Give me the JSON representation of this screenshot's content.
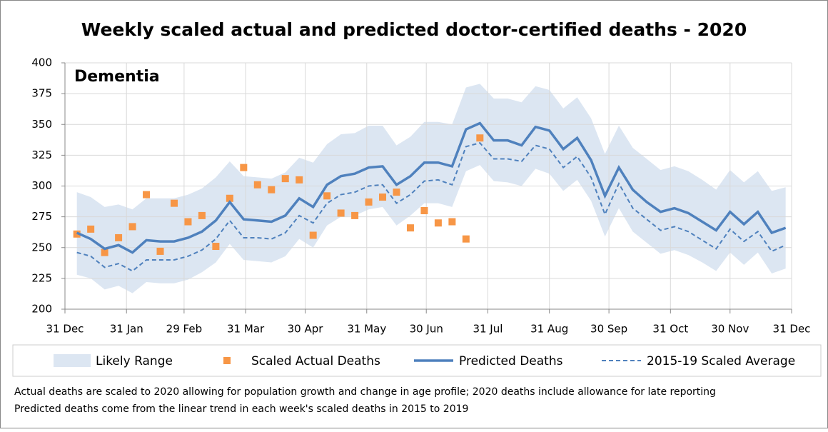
{
  "chart_data": {
    "type": "line",
    "title": "Weekly scaled actual and predicted doctor-certified deaths - 2020",
    "annotation": "Dementia",
    "notes": [
      "Actual deaths are scaled to 2020 allowing for population growth and change in age profile; 2020 deaths include allowance for late reporting",
      "Predicted deaths come from the linear trend in each week's scaled deaths in 2015 to 2019"
    ],
    "x": [
      6,
      13,
      20,
      27,
      34,
      41,
      48,
      55,
      62,
      69,
      76,
      83,
      90,
      97,
      104,
      111,
      118,
      125,
      132,
      139,
      146,
      153,
      160,
      167,
      174,
      181,
      188,
      195,
      202,
      209,
      216,
      223,
      230,
      237,
      244,
      251,
      258,
      265,
      272,
      279,
      286,
      293,
      300,
      307,
      314,
      321,
      328,
      335,
      342,
      349,
      356,
      363
    ],
    "xlim": [
      0,
      366
    ],
    "xticks": [
      {
        "value": 0,
        "label": "31 Dec"
      },
      {
        "value": 31,
        "label": "31 Jan"
      },
      {
        "value": 60,
        "label": "29 Feb"
      },
      {
        "value": 91,
        "label": "31 Mar"
      },
      {
        "value": 121,
        "label": "30 Apr"
      },
      {
        "value": 152,
        "label": "31 May"
      },
      {
        "value": 182,
        "label": "30 Jun"
      },
      {
        "value": 213,
        "label": "31 Jul"
      },
      {
        "value": 244,
        "label": "31 Aug"
      },
      {
        "value": 274,
        "label": "30 Sep"
      },
      {
        "value": 305,
        "label": "31 Oct"
      },
      {
        "value": 335,
        "label": "30 Nov"
      },
      {
        "value": 366,
        "label": "31 Dec"
      }
    ],
    "ylim": [
      200,
      400
    ],
    "yticks": [
      200,
      225,
      250,
      275,
      300,
      325,
      350,
      375,
      400
    ],
    "grid": true,
    "series": [
      {
        "name": "Likely Range",
        "color": "#dce6f2",
        "style": "band",
        "upper": [
          295,
          291,
          283,
          285,
          281,
          290,
          290,
          290,
          293,
          298,
          307,
          320,
          308,
          307,
          306,
          311,
          323,
          319,
          334,
          342,
          343,
          349,
          349,
          333,
          340,
          352,
          352,
          350,
          380,
          383,
          371,
          371,
          368,
          381,
          378,
          363,
          372,
          355,
          326,
          349,
          331,
          322,
          313,
          316,
          312,
          305,
          297,
          313,
          303,
          312,
          296,
          299
        ],
        "lower": [
          228,
          225,
          216,
          219,
          213,
          222,
          221,
          221,
          224,
          230,
          238,
          253,
          240,
          239,
          238,
          243,
          257,
          250,
          268,
          275,
          276,
          281,
          283,
          268,
          276,
          286,
          286,
          283,
          312,
          317,
          304,
          303,
          300,
          314,
          310,
          296,
          305,
          288,
          259,
          282,
          263,
          254,
          245,
          248,
          244,
          238,
          231,
          246,
          236,
          246,
          229,
          233
        ]
      },
      {
        "name": "Scaled Actual Deaths",
        "color": "#f79646",
        "style": "markers",
        "values": [
          261,
          265,
          246,
          258,
          267,
          293,
          247,
          286,
          271,
          276,
          251,
          290,
          315,
          301,
          297,
          306,
          305,
          260,
          292,
          278,
          276,
          287,
          291,
          295,
          266,
          280,
          270,
          271,
          257,
          339,
          null,
          null,
          null,
          null,
          null,
          null,
          null,
          null,
          null,
          null,
          null,
          null,
          null,
          null,
          null,
          null,
          null,
          null,
          null,
          null,
          null,
          null
        ]
      },
      {
        "name": "Predicted Deaths",
        "color": "#4f81bd",
        "style": "solid",
        "values": [
          262,
          257,
          249,
          252,
          246,
          256,
          255,
          255,
          258,
          263,
          272,
          287,
          273,
          272,
          271,
          276,
          290,
          283,
          301,
          308,
          310,
          315,
          316,
          301,
          308,
          319,
          319,
          316,
          346,
          351,
          337,
          337,
          333,
          348,
          345,
          330,
          339,
          321,
          292,
          315,
          297,
          287,
          279,
          282,
          278,
          271,
          264,
          279,
          269,
          279,
          262,
          266
        ]
      },
      {
        "name": "2015-19 Scaled Average",
        "color": "#4f81bd",
        "style": "dashed",
        "values": [
          246,
          243,
          234,
          237,
          231,
          240,
          240,
          240,
          243,
          248,
          257,
          272,
          258,
          258,
          257,
          262,
          276,
          270,
          286,
          293,
          295,
          300,
          301,
          286,
          293,
          304,
          305,
          301,
          332,
          335,
          322,
          322,
          320,
          333,
          330,
          315,
          324,
          307,
          277,
          302,
          282,
          273,
          264,
          267,
          263,
          256,
          249,
          265,
          255,
          263,
          247,
          252
        ]
      }
    ]
  }
}
